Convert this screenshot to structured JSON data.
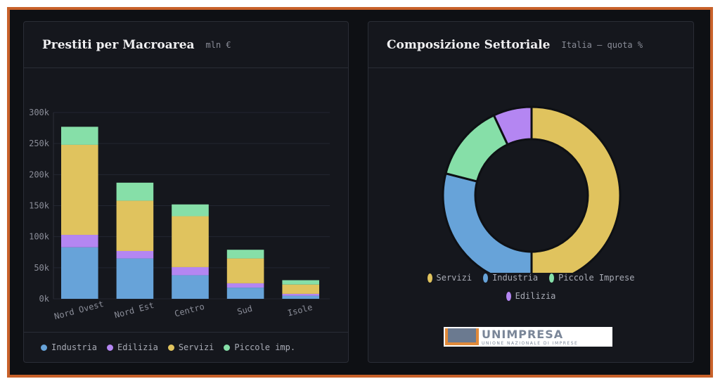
{
  "left": {
    "title": "Prestiti per Macroarea",
    "subtitle": "mln €"
  },
  "right": {
    "title": "Composizione Settoriale",
    "subtitle": "Italia — quota %",
    "logo": "UNIMPRESA UNIONE NAZIONALE DI IMPRESE"
  },
  "colors": {
    "Industria": "#67a3d9",
    "Edilizia": "#b486f2",
    "Servizi": "#e0c35e",
    "Piccole imp.": "#86dfa8"
  },
  "chart_data": [
    {
      "type": "bar",
      "stacked": true,
      "categories": [
        "Nord Ovest",
        "Nord Est",
        "Centro",
        "Sud",
        "Isole"
      ],
      "series": [
        {
          "name": "Industria",
          "values": [
            83,
            65,
            38,
            18,
            5
          ]
        },
        {
          "name": "Edilizia",
          "values": [
            20,
            12,
            13,
            7,
            3
          ]
        },
        {
          "name": "Servizi",
          "values": [
            145,
            81,
            82,
            40,
            15
          ]
        },
        {
          "name": "Piccole imp.",
          "values": [
            29,
            29,
            19,
            14,
            7
          ]
        }
      ],
      "yticks": [
        "0k",
        "50k",
        "100k",
        "150k",
        "200k",
        "250k",
        "300k"
      ],
      "ylim": [
        0,
        300
      ],
      "unit": "thousand mln €",
      "grid": true,
      "legend": "bottom"
    },
    {
      "type": "pie",
      "donut": true,
      "labels": [
        "Servizi",
        "Industria",
        "Piccole Imprese",
        "Edilizia"
      ],
      "values": [
        50,
        29,
        14,
        7
      ],
      "colors": [
        "#e0c35e",
        "#67a3d9",
        "#86dfa8",
        "#b486f2"
      ],
      "legend": "bottom"
    }
  ]
}
